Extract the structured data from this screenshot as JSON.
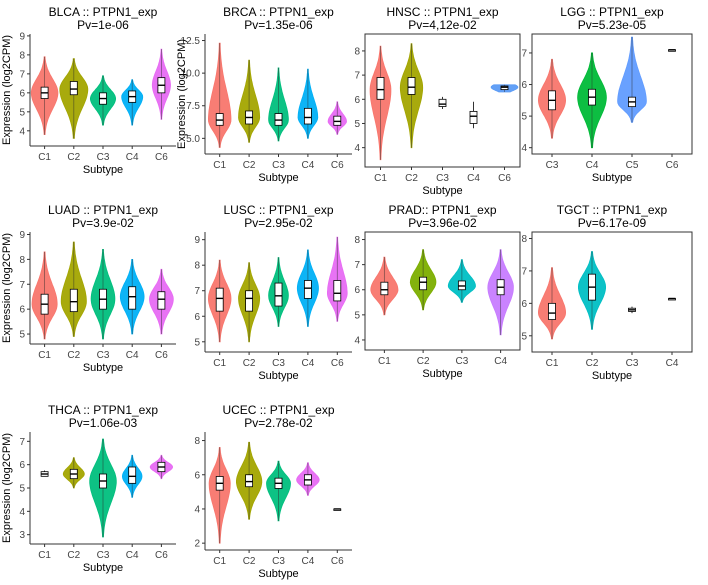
{
  "ylabel_common": "Expression (log2CPM)",
  "xlabel_common": "Subtype",
  "palette": {
    "C1": "#F8766D",
    "C2": "#A3A500",
    "C3": "#00BF7D",
    "C4": "#00B0F6",
    "C5": "#5B9BF5",
    "C6": "#E76BF3"
  },
  "chart_data": [
    {
      "type": "violin",
      "title": "BLCA :: PTPN1_exp",
      "pvalue": "Pv=1e-06",
      "xlabel": "Subtype",
      "ylabel": "Expression (log2CPM)",
      "ylim": [
        3.2,
        9.1
      ],
      "yticks": [
        4,
        5,
        6,
        7,
        8,
        9
      ],
      "categories": [
        "C1",
        "C2",
        "C3",
        "C4",
        "C6"
      ],
      "series": [
        {
          "name": "C1",
          "color": "#F8766D",
          "median": 6.0,
          "q1": 5.7,
          "q3": 6.3,
          "min": 3.8,
          "max": 7.9,
          "spread": 0.95
        },
        {
          "name": "C2",
          "color": "#A3A500",
          "median": 6.2,
          "q1": 5.9,
          "q3": 6.6,
          "min": 3.6,
          "max": 7.8,
          "spread": 1.0
        },
        {
          "name": "C3",
          "color": "#00BF7D",
          "median": 5.7,
          "q1": 5.4,
          "q3": 6.0,
          "min": 4.3,
          "max": 6.9,
          "spread": 0.9
        },
        {
          "name": "C4",
          "color": "#00B0F6",
          "median": 5.8,
          "q1": 5.5,
          "q3": 6.1,
          "min": 4.3,
          "max": 6.7,
          "spread": 0.75
        },
        {
          "name": "C6",
          "color": "#E76BF3",
          "median": 6.4,
          "q1": 6.0,
          "q3": 6.8,
          "min": 4.6,
          "max": 8.3,
          "spread": 0.65
        }
      ]
    },
    {
      "type": "violin",
      "title": "BRCA :: PTPN1_exp",
      "pvalue": "Pv=1.35e-06",
      "xlabel": "Subtype",
      "ylabel": "Expression (log2CPM)",
      "ylim": [
        3.8,
        13.0
      ],
      "yticks": [
        5.0,
        7.5,
        10.0,
        12.5
      ],
      "categories": [
        "C1",
        "C2",
        "C3",
        "C4",
        "C6"
      ],
      "series": [
        {
          "name": "C1",
          "color": "#F8766D",
          "median": 6.4,
          "q1": 6.0,
          "q3": 6.9,
          "min": 4.3,
          "max": 12.3,
          "spread": 0.8
        },
        {
          "name": "C2",
          "color": "#A3A500",
          "median": 6.6,
          "q1": 6.1,
          "q3": 7.1,
          "min": 4.7,
          "max": 11.0,
          "spread": 0.75
        },
        {
          "name": "C3",
          "color": "#00BF7D",
          "median": 6.4,
          "q1": 6.0,
          "q3": 6.9,
          "min": 4.8,
          "max": 10.4,
          "spread": 0.7
        },
        {
          "name": "C4",
          "color": "#00B0F6",
          "median": 6.6,
          "q1": 6.1,
          "q3": 7.3,
          "min": 5.0,
          "max": 10.3,
          "spread": 0.7
        },
        {
          "name": "C6",
          "color": "#E76BF3",
          "median": 6.3,
          "q1": 6.0,
          "q3": 6.7,
          "min": 5.3,
          "max": 7.8,
          "spread": 0.65
        }
      ]
    },
    {
      "type": "violin",
      "title": "HNSC :: PTPN1_exp",
      "pvalue": "Pv=4,12e-02",
      "xlabel": "Subtype",
      "ylabel": "",
      "ylim": [
        3.2,
        8.7
      ],
      "yticks": [
        4,
        5,
        6,
        7,
        8
      ],
      "categories": [
        "C1",
        "C2",
        "C3",
        "C4",
        "C6"
      ],
      "series": [
        {
          "name": "C1",
          "color": "#F8766D",
          "median": 6.4,
          "q1": 6.0,
          "q3": 6.9,
          "min": 3.5,
          "max": 8.2,
          "spread": 0.7
        },
        {
          "name": "C2",
          "color": "#A3A500",
          "median": 6.5,
          "q1": 6.2,
          "q3": 6.9,
          "min": 4.0,
          "max": 8.3,
          "spread": 0.75
        },
        {
          "name": "C3",
          "color": "#00BF7D",
          "median": 5.8,
          "q1": 5.7,
          "q3": 6.0,
          "min": 5.6,
          "max": 6.1,
          "spread": 0.0
        },
        {
          "name": "C4",
          "color": "#00B0F6",
          "median": 5.3,
          "q1": 5.0,
          "q3": 5.5,
          "min": 4.8,
          "max": 5.9,
          "spread": 0.0
        },
        {
          "name": "C6",
          "color": "#5B9BF5",
          "median": 6.5,
          "q1": 6.4,
          "q3": 6.55,
          "min": 6.3,
          "max": 6.6,
          "spread": 0.9
        }
      ]
    },
    {
      "type": "violin",
      "title": "LGG :: PTPN1_exp",
      "pvalue": "Pv=5.23e-05",
      "xlabel": "Subtype",
      "ylabel": "",
      "ylim": [
        3.8,
        7.6
      ],
      "yticks": [
        4,
        5,
        6,
        7
      ],
      "categories": [
        "C3",
        "C4",
        "C5",
        "C6"
      ],
      "series": [
        {
          "name": "C3",
          "color": "#F8766D",
          "median": 5.5,
          "q1": 5.2,
          "q3": 5.8,
          "min": 4.3,
          "max": 6.8,
          "spread": 0.85
        },
        {
          "name": "C4",
          "color": "#00BA38",
          "median": 5.6,
          "q1": 5.35,
          "q3": 5.85,
          "min": 4.0,
          "max": 7.0,
          "spread": 0.9
        },
        {
          "name": "C5",
          "color": "#619CFF",
          "median": 5.45,
          "q1": 5.3,
          "q3": 5.6,
          "min": 4.8,
          "max": 7.5,
          "spread": 0.9
        },
        {
          "name": "C6",
          "color": "#000000",
          "median": 7.1,
          "q1": 7.1,
          "q3": 7.1,
          "min": 7.1,
          "max": 7.1,
          "spread": 0.0
        }
      ]
    },
    {
      "type": "violin",
      "title": "LUAD :: PTPN1_exp",
      "pvalue": "Pv=3.9e-02",
      "xlabel": "Subtype",
      "ylabel": "Expression (log2CPM)",
      "ylim": [
        4.6,
        9.1
      ],
      "yticks": [
        5,
        6,
        7,
        8,
        9
      ],
      "categories": [
        "C1",
        "C2",
        "C3",
        "C4",
        "C6"
      ],
      "series": [
        {
          "name": "C1",
          "color": "#F8766D",
          "median": 6.2,
          "q1": 5.8,
          "q3": 6.6,
          "min": 4.8,
          "max": 8.3,
          "spread": 0.9
        },
        {
          "name": "C2",
          "color": "#A3A500",
          "median": 6.3,
          "q1": 5.9,
          "q3": 6.8,
          "min": 4.9,
          "max": 8.7,
          "spread": 0.9
        },
        {
          "name": "C3",
          "color": "#00BF7D",
          "median": 6.4,
          "q1": 6.0,
          "q3": 6.8,
          "min": 4.8,
          "max": 8.4,
          "spread": 0.85
        },
        {
          "name": "C4",
          "color": "#00B0F6",
          "median": 6.5,
          "q1": 6.0,
          "q3": 6.9,
          "min": 5.0,
          "max": 8.0,
          "spread": 0.85
        },
        {
          "name": "C6",
          "color": "#E76BF3",
          "median": 6.4,
          "q1": 6.0,
          "q3": 6.7,
          "min": 5.0,
          "max": 7.6,
          "spread": 0.85
        }
      ]
    },
    {
      "type": "violin",
      "title": "LUSC :: PTPN1_exp",
      "pvalue": "Pv=2.95e-02",
      "xlabel": "Subtype",
      "ylabel": "",
      "ylim": [
        4.6,
        9.3
      ],
      "yticks": [
        5,
        6,
        7,
        8,
        9
      ],
      "categories": [
        "C1",
        "C2",
        "C3",
        "C4",
        "C6"
      ],
      "series": [
        {
          "name": "C1",
          "color": "#F8766D",
          "median": 6.7,
          "q1": 6.2,
          "q3": 7.1,
          "min": 5.0,
          "max": 8.2,
          "spread": 0.8
        },
        {
          "name": "C2",
          "color": "#A3A500",
          "median": 6.7,
          "q1": 6.2,
          "q3": 7.0,
          "min": 5.0,
          "max": 8.1,
          "spread": 0.75
        },
        {
          "name": "C3",
          "color": "#00BF7D",
          "median": 6.8,
          "q1": 6.4,
          "q3": 7.3,
          "min": 5.6,
          "max": 8.3,
          "spread": 0.7
        },
        {
          "name": "C4",
          "color": "#00B0F6",
          "median": 7.1,
          "q1": 6.7,
          "q3": 7.4,
          "min": 5.6,
          "max": 8.6,
          "spread": 0.75
        },
        {
          "name": "C6",
          "color": "#E76BF3",
          "median": 6.9,
          "q1": 6.6,
          "q3": 7.4,
          "min": 5.8,
          "max": 9.1,
          "spread": 0.7
        }
      ]
    },
    {
      "type": "violin",
      "title": "PRAD:: PTPN1_exp",
      "pvalue": "Pv=3.96e-02",
      "xlabel": "Subtype",
      "ylabel": "",
      "ylim": [
        3.6,
        8.3
      ],
      "yticks": [
        4,
        5,
        6,
        7,
        8
      ],
      "categories": [
        "C1",
        "C2",
        "C3",
        "C4"
      ],
      "series": [
        {
          "name": "C1",
          "color": "#F8766D",
          "median": 6.0,
          "q1": 5.8,
          "q3": 6.3,
          "min": 5.0,
          "max": 7.3,
          "spread": 0.85
        },
        {
          "name": "C2",
          "color": "#7CAE00",
          "median": 6.3,
          "q1": 6.0,
          "q3": 6.5,
          "min": 5.2,
          "max": 7.6,
          "spread": 0.8
        },
        {
          "name": "C3",
          "color": "#00BFC4",
          "median": 6.15,
          "q1": 6.0,
          "q3": 6.35,
          "min": 5.5,
          "max": 7.2,
          "spread": 0.85
        },
        {
          "name": "C4",
          "color": "#C77CFF",
          "median": 6.1,
          "q1": 5.8,
          "q3": 6.4,
          "min": 4.2,
          "max": 7.6,
          "spread": 0.8
        }
      ]
    },
    {
      "type": "violin",
      "title": "TGCT :: PTPN1_exp",
      "pvalue": "Pv=6.17e-09",
      "xlabel": "Subtype",
      "ylabel": "",
      "ylim": [
        4.5,
        8.2
      ],
      "yticks": [
        5,
        6,
        7,
        8
      ],
      "categories": [
        "C1",
        "C2",
        "C3",
        "C4"
      ],
      "series": [
        {
          "name": "C1",
          "color": "#F8766D",
          "median": 5.7,
          "q1": 5.5,
          "q3": 6.0,
          "min": 4.9,
          "max": 7.1,
          "spread": 0.85
        },
        {
          "name": "C2",
          "color": "#00BFC4",
          "median": 6.5,
          "q1": 6.1,
          "q3": 6.9,
          "min": 5.2,
          "max": 7.6,
          "spread": 0.85
        },
        {
          "name": "C3",
          "color": "#000000",
          "median": 5.8,
          "q1": 5.75,
          "q3": 5.85,
          "min": 5.7,
          "max": 5.9,
          "spread": 0.0
        },
        {
          "name": "C4",
          "color": "#000000",
          "median": 6.15,
          "q1": 6.15,
          "q3": 6.15,
          "min": 6.15,
          "max": 6.15,
          "spread": 0.0
        }
      ]
    },
    {
      "type": "violin",
      "title": "THCA :: PTPN1_exp",
      "pvalue": "Pv=1.06e-03",
      "xlabel": "Subtype",
      "ylabel": "Expression (log2CPM)",
      "ylim": [
        2.6,
        7.4
      ],
      "yticks": [
        3,
        4,
        5,
        6,
        7
      ],
      "categories": [
        "C1",
        "C2",
        "C3",
        "C4",
        "C6"
      ],
      "series": [
        {
          "name": "C1",
          "color": "#000000",
          "median": 5.6,
          "q1": 5.5,
          "q3": 5.7,
          "min": 5.5,
          "max": 5.75,
          "spread": 0.0
        },
        {
          "name": "C2",
          "color": "#A3A500",
          "median": 5.6,
          "q1": 5.4,
          "q3": 5.8,
          "min": 5.0,
          "max": 6.3,
          "spread": 0.75
        },
        {
          "name": "C3",
          "color": "#00BF7D",
          "median": 5.3,
          "q1": 5.0,
          "q3": 5.6,
          "min": 2.9,
          "max": 7.1,
          "spread": 0.95
        },
        {
          "name": "C4",
          "color": "#00B0F6",
          "median": 5.5,
          "q1": 5.2,
          "q3": 5.9,
          "min": 4.6,
          "max": 6.4,
          "spread": 0.7
        },
        {
          "name": "C6",
          "color": "#E76BF3",
          "median": 5.9,
          "q1": 5.7,
          "q3": 6.1,
          "min": 5.4,
          "max": 6.4,
          "spread": 0.8
        }
      ]
    },
    {
      "type": "violin",
      "title": "UCEC :: PTPN1_exp",
      "pvalue": "Pv=2.78e-02",
      "xlabel": "Subtype",
      "ylabel": "",
      "ylim": [
        1.6,
        8.5
      ],
      "yticks": [
        2,
        4,
        6,
        8
      ],
      "categories": [
        "C1",
        "C2",
        "C3",
        "C4",
        "C6"
      ],
      "series": [
        {
          "name": "C1",
          "color": "#F8766D",
          "median": 5.5,
          "q1": 5.1,
          "q3": 5.9,
          "min": 2.0,
          "max": 7.6,
          "spread": 0.75
        },
        {
          "name": "C2",
          "color": "#A3A500",
          "median": 5.6,
          "q1": 5.3,
          "q3": 6.0,
          "min": 3.4,
          "max": 7.9,
          "spread": 0.9
        },
        {
          "name": "C3",
          "color": "#00BF7D",
          "median": 5.5,
          "q1": 5.2,
          "q3": 5.8,
          "min": 3.3,
          "max": 6.8,
          "spread": 0.85
        },
        {
          "name": "C4",
          "color": "#E76BF3",
          "median": 5.7,
          "q1": 5.4,
          "q3": 6.0,
          "min": 4.8,
          "max": 6.7,
          "spread": 0.8
        },
        {
          "name": "C6",
          "color": "#000000",
          "median": 4.0,
          "q1": 4.0,
          "q3": 4.0,
          "min": 4.0,
          "max": 4.0,
          "spread": 0.0
        }
      ]
    }
  ]
}
